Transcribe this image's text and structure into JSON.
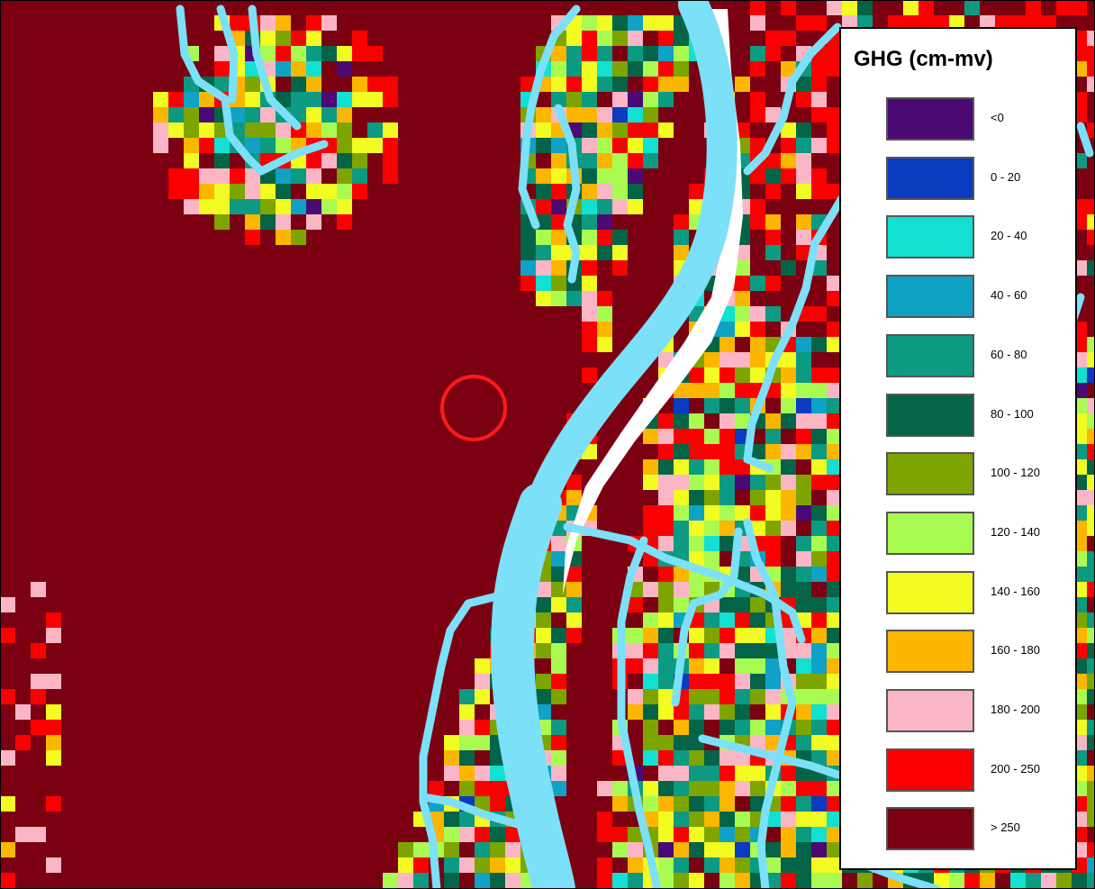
{
  "legend": {
    "title": "GHG (cm-mv)",
    "classes": [
      {
        "label": "<0",
        "color": "#4b0a73"
      },
      {
        "label": "0 - 20",
        "color": "#0b3bbf"
      },
      {
        "label": "20 - 40",
        "color": "#12e0d0"
      },
      {
        "label": "40 - 60",
        "color": "#0fa2c4"
      },
      {
        "label": "60 - 80",
        "color": "#0d9a82"
      },
      {
        "label": "80 - 100",
        "color": "#046447"
      },
      {
        "label": "100 - 120",
        "color": "#7ea400"
      },
      {
        "label": "120 - 140",
        "color": "#a9fb51"
      },
      {
        "label": "140 - 160",
        "color": "#f2fb22"
      },
      {
        "label": "160 - 180",
        "color": "#fbb600"
      },
      {
        "label": "180 - 200",
        "color": "#fbb6c6"
      },
      {
        "label": "200 - 250",
        "color": "#fb0000"
      },
      {
        "label": "> 250",
        "color": "#7a0012"
      }
    ]
  },
  "map": {
    "water_color": "#7ce0f8",
    "marker_color": "#ff1a1a",
    "background_class_color": "#7a0012"
  }
}
